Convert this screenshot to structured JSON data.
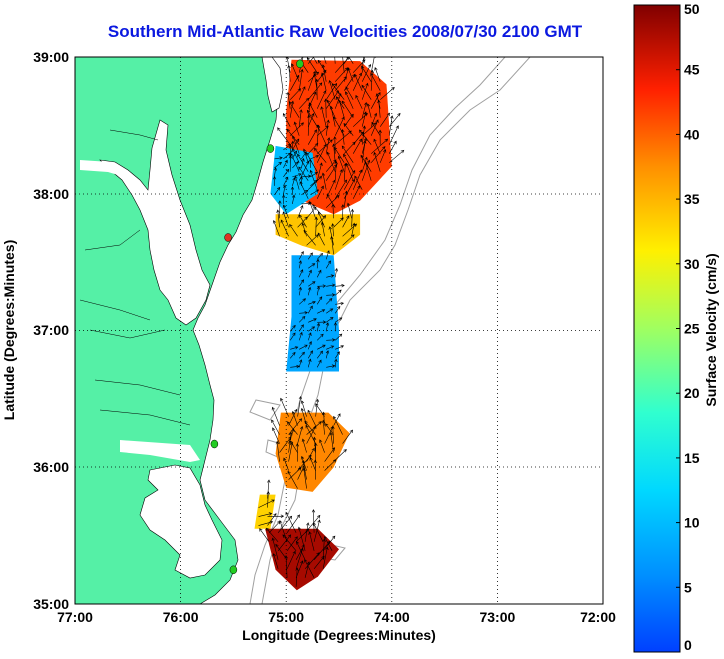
{
  "title": "Southern Mid-Atlantic Raw Velocities 2008/07/30 2100 GMT",
  "axes": {
    "xlabel": "Longitude (Degrees:Minutes)",
    "ylabel": "Latitude (Degrees:Minutes)",
    "x_ticks": [
      "77:00",
      "76:00",
      "75:00",
      "74:00",
      "73:00",
      "72:00"
    ],
    "y_ticks": [
      "35:00",
      "36:00",
      "37:00",
      "38:00",
      "39:00"
    ],
    "xlim": [
      -77,
      -72
    ],
    "ylim": [
      35,
      39
    ]
  },
  "colorbar": {
    "label": "Surface Velocity (cm/s)",
    "ticks": [
      "0",
      "5",
      "10",
      "15",
      "20",
      "25",
      "30",
      "35",
      "40",
      "45",
      "50"
    ],
    "range": [
      0,
      50
    ]
  },
  "colors": {
    "land": "#55f0a6",
    "title": "#0b19e0",
    "bathymetry": "#a0a0a0",
    "station_active": "#22cc22",
    "station_inactive": "#dd3322"
  },
  "stations": [
    {
      "lon": -74.87,
      "lat": 38.95,
      "status": "active"
    },
    {
      "lon": -75.15,
      "lat": 38.33,
      "status": "active"
    },
    {
      "lon": -75.55,
      "lat": 37.68,
      "status": "inactive"
    },
    {
      "lon": -75.68,
      "lat": 36.17,
      "status": "active"
    },
    {
      "lon": -75.5,
      "lat": 35.25,
      "status": "active"
    }
  ],
  "velocity_regions": [
    {
      "name": "delaware-bay-mouth-high",
      "lonlat": [
        [
          -74.95,
          38.98
        ],
        [
          -74.3,
          38.97
        ],
        [
          -74.05,
          38.8
        ],
        [
          -74.0,
          38.2
        ],
        [
          -74.3,
          37.95
        ],
        [
          -74.55,
          37.85
        ],
        [
          -74.85,
          37.95
        ],
        [
          -75.0,
          38.2
        ],
        [
          -75.0,
          38.6
        ]
      ],
      "speed": 42
    },
    {
      "name": "delmarva-offshore-low",
      "lonlat": [
        [
          -75.1,
          38.35
        ],
        [
          -74.75,
          38.3
        ],
        [
          -74.7,
          38.0
        ],
        [
          -75.0,
          37.85
        ],
        [
          -75.15,
          38.0
        ]
      ],
      "speed": 10
    },
    {
      "name": "delmarva-south-band",
      "lonlat": [
        [
          -75.1,
          37.85
        ],
        [
          -74.3,
          37.85
        ],
        [
          -74.3,
          37.7
        ],
        [
          -74.55,
          37.55
        ],
        [
          -74.85,
          37.62
        ],
        [
          -75.1,
          37.7
        ]
      ],
      "speed": 34
    },
    {
      "name": "virginia-shelf-low",
      "lonlat": [
        [
          -74.95,
          37.55
        ],
        [
          -74.55,
          37.55
        ],
        [
          -74.5,
          37.0
        ],
        [
          -74.5,
          36.7
        ],
        [
          -75.0,
          36.7
        ],
        [
          -74.95,
          37.1
        ]
      ],
      "speed": 8
    },
    {
      "name": "outer-banks-north",
      "lonlat": [
        [
          -75.05,
          36.4
        ],
        [
          -74.6,
          36.4
        ],
        [
          -74.4,
          36.25
        ],
        [
          -74.55,
          36.0
        ],
        [
          -74.75,
          35.82
        ],
        [
          -75.0,
          35.85
        ],
        [
          -75.1,
          36.1
        ]
      ],
      "speed": 38
    },
    {
      "name": "hatteras-southwest",
      "lonlat": [
        [
          -75.25,
          35.8
        ],
        [
          -75.1,
          35.8
        ],
        [
          -75.15,
          35.55
        ],
        [
          -75.3,
          35.55
        ]
      ],
      "speed": 33
    },
    {
      "name": "hatteras-cape",
      "lonlat": [
        [
          -75.2,
          35.55
        ],
        [
          -74.7,
          35.55
        ],
        [
          -74.5,
          35.4
        ],
        [
          -74.7,
          35.2
        ],
        [
          -74.9,
          35.1
        ],
        [
          -75.1,
          35.25
        ]
      ],
      "speed": 48
    }
  ]
}
